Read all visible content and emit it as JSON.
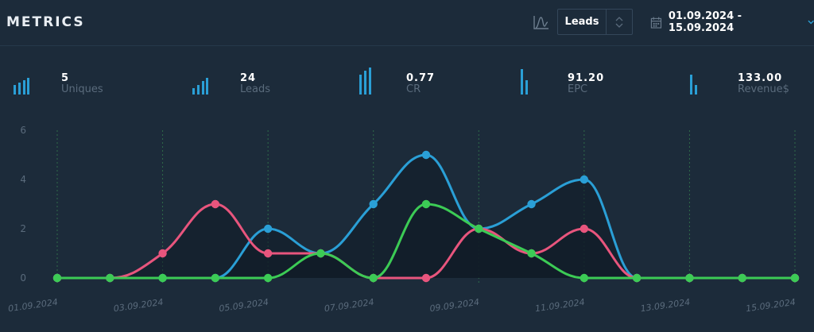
{
  "header": {
    "title": "METRICS",
    "chart_type_icon": "line-chart-icon",
    "metric_select": {
      "value": "Leads"
    },
    "date_range": "01.09.2024 - 15.09.2024"
  },
  "stats": [
    {
      "value": "5",
      "label": "Uniques",
      "icon": "bar-chart-icon"
    },
    {
      "value": "24",
      "label": "Leads",
      "icon": "bar-chart-icon"
    },
    {
      "value": "0.77",
      "label": "CR",
      "icon": "bar-chart-icon"
    },
    {
      "value": "91.20",
      "label": "EPC",
      "icon": "bar-chart-icon"
    },
    {
      "value": "133.00",
      "label": "Revenue$",
      "icon": "bar-chart-icon"
    }
  ],
  "colors": {
    "blue": "#2a9fd6",
    "pink": "#e8557d",
    "green": "#3ccb55",
    "accent": "#2a9fd6"
  },
  "chart_data": {
    "type": "line",
    "x": [
      "01.09.2024",
      "02.09.2024",
      "03.09.2024",
      "04.09.2024",
      "05.09.2024",
      "06.09.2024",
      "07.09.2024",
      "08.09.2024",
      "09.09.2024",
      "10.09.2024",
      "11.09.2024",
      "12.09.2024",
      "13.09.2024",
      "14.09.2024",
      "15.09.2024"
    ],
    "x_tick_labels": [
      "01.09.2024",
      "03.09.2024",
      "05.09.2024",
      "07.09.2024",
      "09.09.2024",
      "11.09.2024",
      "13.09.2024",
      "15.09.2024"
    ],
    "y_ticks": [
      0,
      2,
      4,
      6
    ],
    "ylim": [
      0,
      6
    ],
    "grid": "vertical-dashed",
    "series": [
      {
        "color": "#2a9fd6",
        "values": [
          0,
          0,
          0,
          0,
          2,
          1,
          3,
          5,
          2,
          3,
          4,
          0,
          0,
          0,
          0
        ]
      },
      {
        "color": "#e8557d",
        "values": [
          0,
          0,
          1,
          3,
          1,
          1,
          0,
          0,
          2,
          1,
          2,
          0,
          0,
          0,
          0
        ]
      },
      {
        "color": "#3ccb55",
        "values": [
          0,
          0,
          0,
          0,
          0,
          1,
          0,
          3,
          2,
          1,
          0,
          0,
          0,
          0,
          0
        ]
      }
    ]
  }
}
